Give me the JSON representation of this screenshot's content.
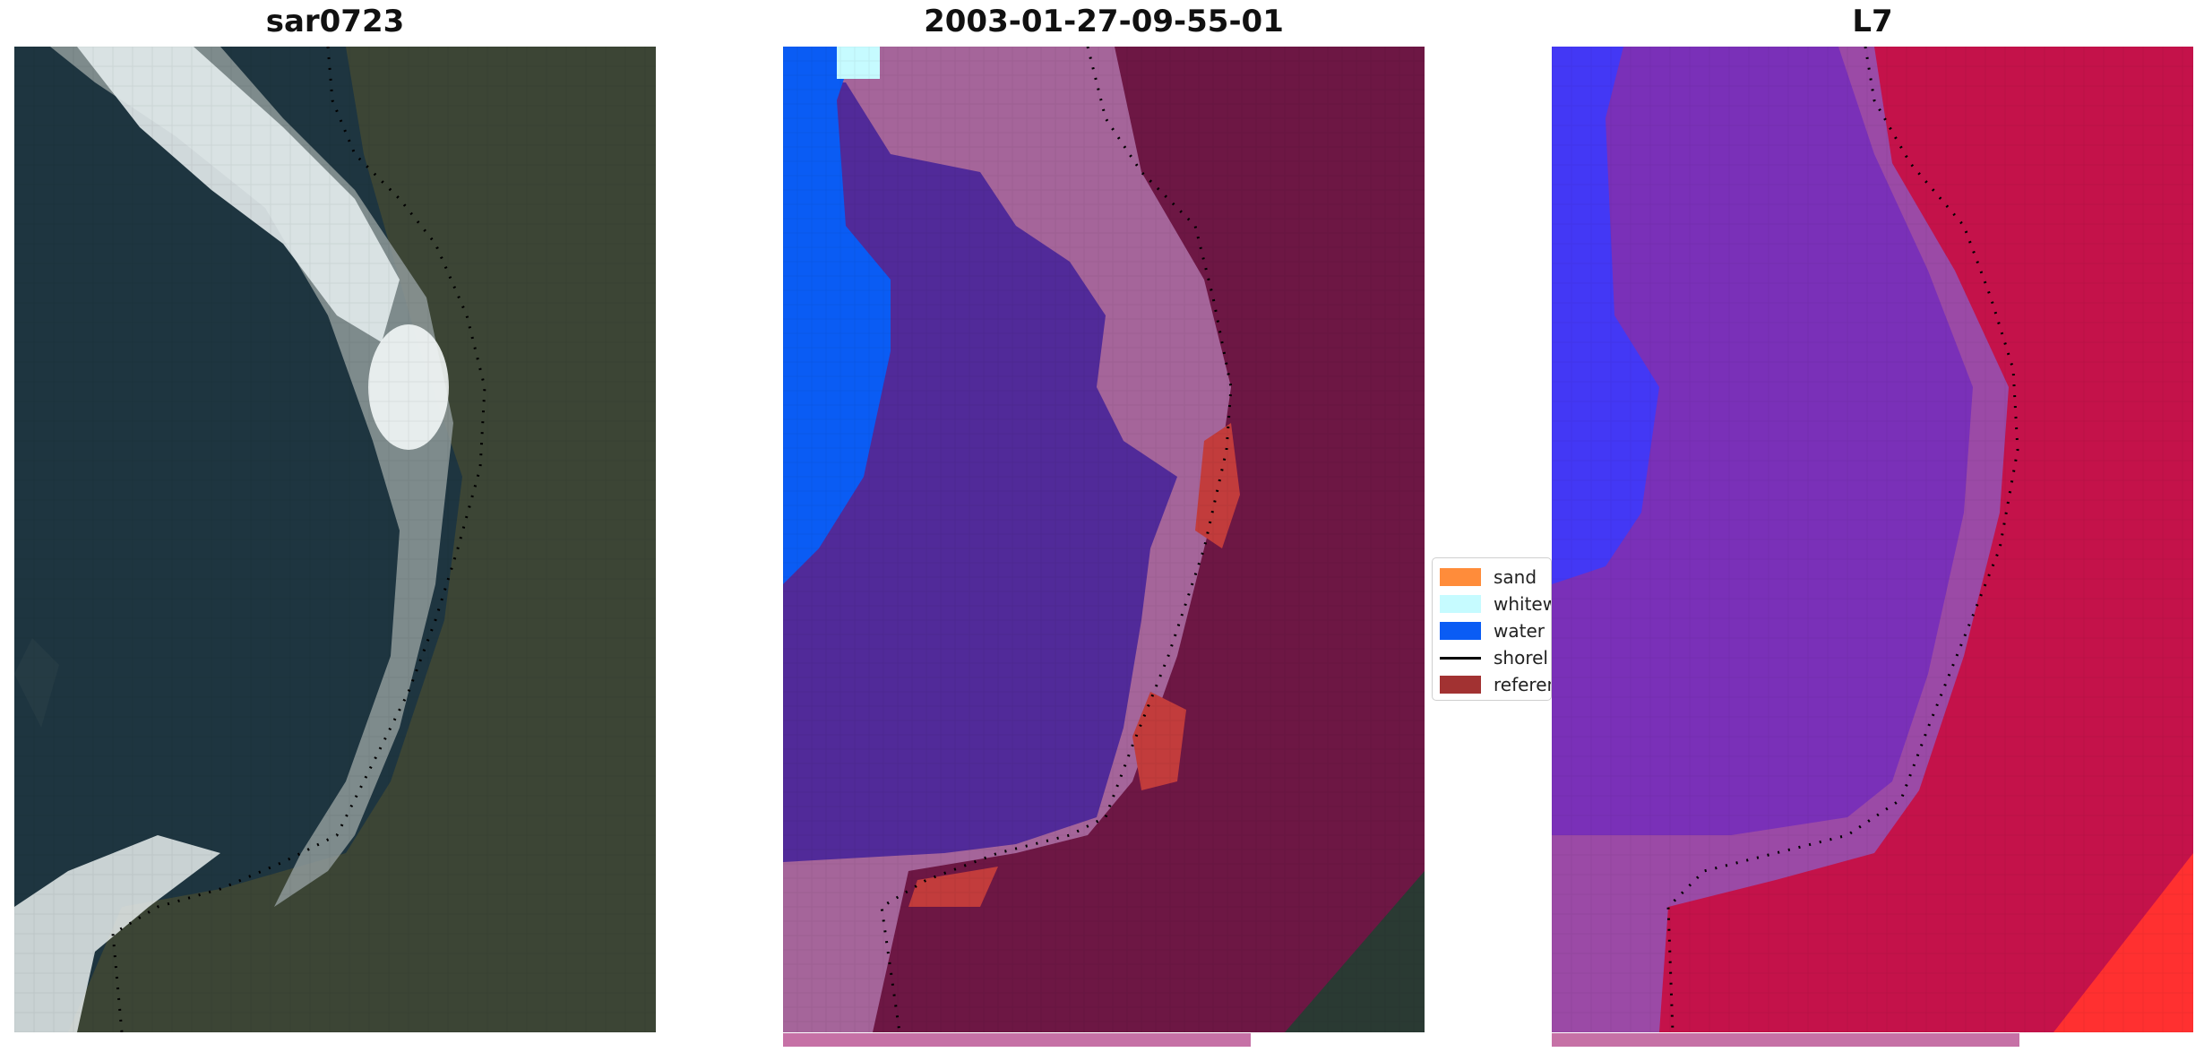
{
  "panels": [
    {
      "title": "sar0723"
    },
    {
      "title": "2003-01-27-09-55-01"
    },
    {
      "title": "L7"
    }
  ],
  "legend": {
    "items": [
      {
        "label": "sand",
        "color": "#ff8c3a"
      },
      {
        "label": "whitew",
        "color": "#c6fbff"
      },
      {
        "label": "water",
        "color": "#0a5cf4"
      },
      {
        "label": "shorel",
        "color": "#000000"
      },
      {
        "label": "referen",
        "color": "#a23232"
      }
    ]
  },
  "colors": {
    "ocean": "#1e3540",
    "foam": "#e6eef0",
    "land": "#3e4536",
    "sand_class": "#a5659a",
    "water_class": "#512a99",
    "water_blue": "#0a5cf4",
    "land_class": "#6d1744",
    "reference": "#c23c3c",
    "l7_water": "#7a30b8",
    "l7_land": "#c4124a",
    "l7_blue": "#3a3aff",
    "bar": "#c671a6"
  }
}
